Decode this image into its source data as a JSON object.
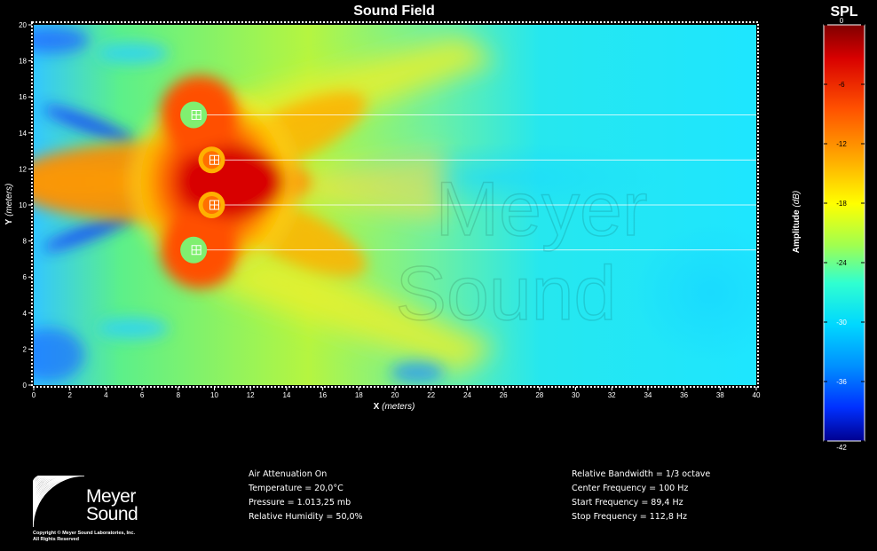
{
  "title": "Sound Field",
  "x_axis": {
    "name": "X",
    "unit": "(meters)",
    "ticks": [
      "0",
      "2",
      "4",
      "6",
      "8",
      "10",
      "12",
      "14",
      "16",
      "18",
      "20",
      "22",
      "24",
      "26",
      "28",
      "30",
      "32",
      "34",
      "36",
      "38",
      "40"
    ]
  },
  "y_axis": {
    "name": "Y",
    "unit": "(meters)",
    "ticks": [
      "0",
      "2",
      "4",
      "6",
      "8",
      "10",
      "12",
      "14",
      "16",
      "18",
      "20"
    ]
  },
  "colorbar": {
    "title": "SPL",
    "label": "Amplitude",
    "unit": "(dB)",
    "ticks": [
      "0",
      "-6",
      "-12",
      "-18",
      "-24",
      "-30",
      "-36",
      "-42"
    ]
  },
  "speakers": [
    {
      "x": 9,
      "y": 15
    },
    {
      "x": 10,
      "y": 12.5
    },
    {
      "x": 10,
      "y": 10
    },
    {
      "x": 9,
      "y": 7.5
    }
  ],
  "atmosphere": [
    "Air Attenuation On",
    "Temperature = 20,0°C",
    "Pressure = 1.013,25  mb",
    "Relative Humidity = 50,0%"
  ],
  "frequency": [
    "Relative Bandwidth = 1/3 octave",
    "Center Frequency = 100 Hz",
    "Start Frequency = 89,4 Hz",
    "Stop Frequency = 112,8 Hz"
  ],
  "logo": {
    "line1": "Meyer",
    "line2": "Sound",
    "copyright1": "Copyright © Meyer Sound Laboratories, Inc.",
    "copyright2": "All Rights Reserved"
  },
  "watermark": [
    "Meyer",
    "Sound"
  ]
}
